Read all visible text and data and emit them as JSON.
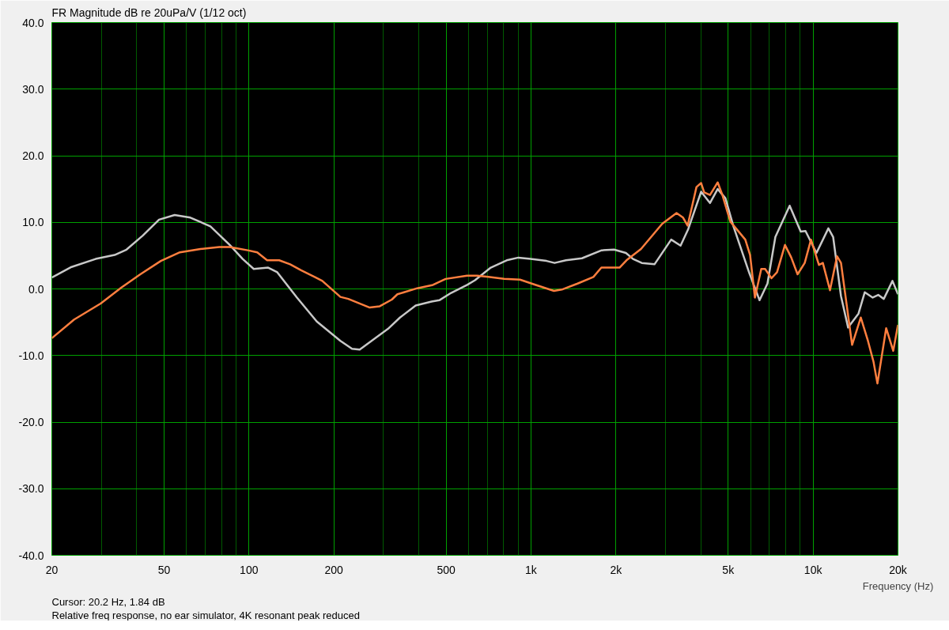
{
  "chart_data": {
    "type": "line",
    "title": "FR Magnitude dB re 20uPa/V (1/12 oct)",
    "xlabel": "Frequency (Hz)",
    "annotations": [
      "Cursor: 20.2 Hz, 1.84 dB",
      "Relative freq response, no ear simulator, 4K resonant peak reduced"
    ],
    "log": "x",
    "grid": true,
    "marker": "none",
    "line_style": "solid",
    "xlim": [
      20,
      20000
    ],
    "ylim": [
      -40,
      40
    ],
    "xticks": [
      20,
      {
        "value": 30,
        "label": null
      },
      {
        "value": 40,
        "label": null
      },
      50,
      {
        "value": 60,
        "label": null
      },
      {
        "value": 70,
        "label": null
      },
      {
        "value": 80,
        "label": null
      },
      {
        "value": 90,
        "label": null
      },
      100,
      200,
      {
        "value": 300,
        "label": null
      },
      {
        "value": 400,
        "label": null
      },
      500,
      {
        "value": 600,
        "label": null
      },
      {
        "value": 700,
        "label": null
      },
      {
        "value": 800,
        "label": null
      },
      {
        "value": 900,
        "label": null
      },
      {
        "value": 1000,
        "label": "1k"
      },
      {
        "value": 2000,
        "label": "2k"
      },
      {
        "value": 3000,
        "label": null
      },
      {
        "value": 4000,
        "label": null
      },
      {
        "value": 5000,
        "label": "5k"
      },
      {
        "value": 6000,
        "label": null
      },
      {
        "value": 7000,
        "label": null
      },
      {
        "value": 8000,
        "label": null
      },
      {
        "value": 9000,
        "label": null
      },
      {
        "value": 10000,
        "label": "10k"
      },
      {
        "value": 20000,
        "label": "20k"
      }
    ],
    "yticks": [
      {
        "value": -40,
        "label": "-40.0"
      },
      {
        "value": -30,
        "label": "-30.0"
      },
      {
        "value": -20,
        "label": "-20.0"
      },
      {
        "value": -10,
        "label": "-10.0"
      },
      {
        "value": 0,
        "label": "0.0"
      },
      {
        "value": 10,
        "label": "10.0"
      },
      {
        "value": 20,
        "label": "20.0"
      },
      {
        "value": 30,
        "label": "30.0"
      },
      {
        "value": 40,
        "label": "40.0"
      }
    ],
    "series": [
      {
        "color": "#c8c8c8",
        "x": [
          20,
          23.5,
          28.6,
          33.4,
          36.8,
          42,
          48,
          54.5,
          62,
          73,
          85.5,
          95,
          104,
          117,
          126,
          148,
          174,
          211,
          232,
          247,
          272,
          311,
          343,
          390,
          444,
          473,
          521,
          594,
          633,
          720,
          820,
          902,
          996,
          1135,
          1212,
          1330,
          1515,
          1780,
          1970,
          2170,
          2300,
          2470,
          2740,
          3140,
          3390,
          3610,
          4010,
          4310,
          4590,
          4890,
          5220,
          5940,
          6460,
          6890,
          7350,
          8260,
          9040,
          9400,
          10280,
          11330,
          11780,
          12560,
          13310,
          14490,
          15250,
          16270,
          17020,
          17810,
          19120,
          20000
        ],
        "values": [
          1.7,
          3.3,
          4.5,
          5.1,
          5.9,
          8.0,
          10.4,
          11.1,
          10.7,
          9.4,
          6.6,
          4.5,
          3.0,
          3.2,
          2.5,
          -1.3,
          -4.9,
          -7.8,
          -9.0,
          -9.1,
          -7.8,
          -6.0,
          -4.3,
          -2.5,
          -1.9,
          -1.7,
          -0.6,
          0.6,
          1.3,
          3.2,
          4.3,
          4.7,
          4.5,
          4.2,
          3.9,
          4.3,
          4.6,
          5.8,
          5.9,
          5.4,
          4.5,
          3.9,
          3.7,
          7.4,
          6.5,
          9.0,
          14.6,
          12.9,
          15.0,
          13.6,
          9.4,
          2.4,
          -1.7,
          0.8,
          7.8,
          12.5,
          8.6,
          8.7,
          5.4,
          9.1,
          7.8,
          -1.1,
          -5.8,
          -3.7,
          -0.5,
          -1.3,
          -0.9,
          -1.5,
          1.2,
          -0.8
        ]
      },
      {
        "color": "#ff7f3f",
        "x": [
          20,
          24,
          29.8,
          35.3,
          41.2,
          48.7,
          56.9,
          67.3,
          78.5,
          85.5,
          99,
          107,
          116,
          128,
          140,
          153,
          171,
          182,
          211,
          225,
          268,
          291,
          321,
          336,
          395,
          449,
          498,
          593,
          644,
          706,
          803,
          914,
          1040,
          1206,
          1286,
          1462,
          1664,
          1776,
          2060,
          2180,
          2454,
          2920,
          3280,
          3460,
          3590,
          3710,
          3860,
          4010,
          4110,
          4310,
          4440,
          4590,
          4770,
          5090,
          5400,
          5750,
          5980,
          6220,
          6550,
          6760,
          7120,
          7450,
          7950,
          8370,
          8810,
          9340,
          9830,
          10490,
          10830,
          11480,
          12160,
          12560,
          13750,
          14760,
          15650,
          16370,
          16910,
          18160,
          19240,
          20000
        ],
        "values": [
          -7.4,
          -4.6,
          -2.2,
          0.2,
          2.2,
          4.2,
          5.5,
          6.0,
          6.3,
          6.3,
          5.8,
          5.5,
          4.3,
          4.3,
          3.7,
          2.8,
          1.8,
          1.2,
          -1.2,
          -1.5,
          -2.8,
          -2.6,
          -1.6,
          -0.8,
          0.1,
          0.6,
          1.5,
          2.0,
          2.0,
          1.8,
          1.5,
          1.4,
          0.6,
          -0.3,
          -0.1,
          0.8,
          1.8,
          3.2,
          3.2,
          4.3,
          6.0,
          9.8,
          11.4,
          10.7,
          9.5,
          12.1,
          15.3,
          15.9,
          14.5,
          14.1,
          15.0,
          16.0,
          14.1,
          10.1,
          8.8,
          7.4,
          5.1,
          -1.3,
          3.0,
          3.0,
          1.6,
          2.5,
          6.6,
          4.7,
          2.2,
          3.9,
          7.4,
          3.6,
          3.9,
          -0.2,
          4.9,
          3.9,
          -8.4,
          -4.3,
          -7.8,
          -10.9,
          -14.2,
          -5.9,
          -9.3,
          -5.4
        ]
      }
    ]
  }
}
